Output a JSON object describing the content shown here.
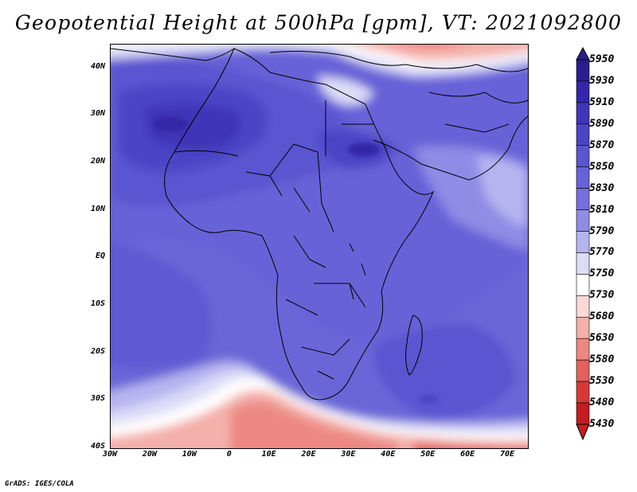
{
  "title": "Geopotential Height at 500hPa [gpm], VT: 2021092800",
  "footer": "GrADS: IGES/COLA",
  "map": {
    "projection": "latlon",
    "lon_range": [
      -30,
      75
    ],
    "lat_range": [
      -40,
      45
    ],
    "lat_ticks": [
      "40N",
      "30N",
      "20N",
      "10N",
      "EQ",
      "10S",
      "20S",
      "30S",
      "40S"
    ],
    "lon_ticks": [
      "30W",
      "20W",
      "10W",
      "0",
      "10E",
      "20E",
      "30E",
      "40E",
      "50E",
      "60E",
      "70E"
    ]
  },
  "colorbar": {
    "levels": [
      "5950",
      "5930",
      "5910",
      "5890",
      "5870",
      "5850",
      "5830",
      "5810",
      "5790",
      "5770",
      "5750",
      "5730",
      "5680",
      "5630",
      "5580",
      "5530",
      "5480",
      "5430"
    ],
    "colors": [
      "#2a1e8e",
      "#3525a8",
      "#3f35b8",
      "#4b45c6",
      "#5a55d0",
      "#6762d8",
      "#7570de",
      "#8f8ce6",
      "#b6b4f0",
      "#dddcf7",
      "#ffffff",
      "#fbd9d6",
      "#f4b0ab",
      "#ec8883",
      "#e2615d",
      "#d33b39",
      "#bf1e22"
    ]
  }
}
